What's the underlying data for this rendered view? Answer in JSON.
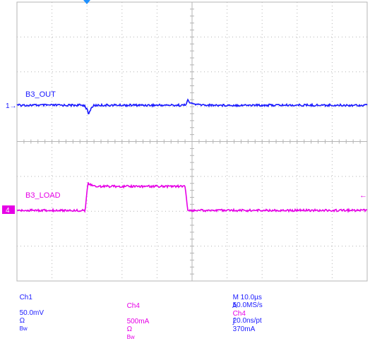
{
  "chart_data": {
    "type": "line",
    "grid": true,
    "x_divisions": 10,
    "y_divisions": 8,
    "series": [
      {
        "name": "B3_OUT",
        "channel": "Ch1",
        "color": "#1a1aff",
        "marker": "1",
        "points": [
          [
            0,
            0
          ],
          [
            3.85,
            0
          ],
          [
            4,
            -0.4
          ],
          [
            4.1,
            -0.9
          ],
          [
            4.2,
            -0.4
          ],
          [
            4.35,
            -0.05
          ],
          [
            4.6,
            0
          ],
          [
            9.6,
            0
          ],
          [
            9.75,
            0.45
          ],
          [
            9.9,
            0.2
          ],
          [
            10.3,
            0.05
          ],
          [
            11,
            0
          ],
          [
            20,
            0
          ]
        ]
      },
      {
        "name": "B3_LOAD",
        "channel": "Ch4",
        "color": "#e600e6",
        "marker": "4",
        "points": [
          [
            0,
            0
          ],
          [
            3.9,
            0
          ],
          [
            4.05,
            2.6
          ],
          [
            4.4,
            2.3
          ],
          [
            9.6,
            2.3
          ],
          [
            9.75,
            0
          ],
          [
            20,
            0
          ]
        ]
      }
    ]
  },
  "status": {
    "ch1_name": "Ch1",
    "ch1_scale": "50.0mV",
    "ch1_ohm": "Ω",
    "ch1_bw": "Bw",
    "ch4_name": "Ch4",
    "ch4_scale": "500mA",
    "ch4_ohm": "Ω",
    "ch4_bw": "Bw",
    "timebase": "M 10.0µs",
    "sample_rate": "50.0MS/s",
    "resolution": "20.0ns/pt",
    "trigger_mode": "A",
    "trigger_source": "Ch4",
    "trigger_slope": "∫",
    "trigger_level": "370mA"
  },
  "colors": {
    "ch1": "#1a1aff",
    "ch4": "#e600e6",
    "grid": "#b4b4b4",
    "trigger": "#1e90ff"
  }
}
